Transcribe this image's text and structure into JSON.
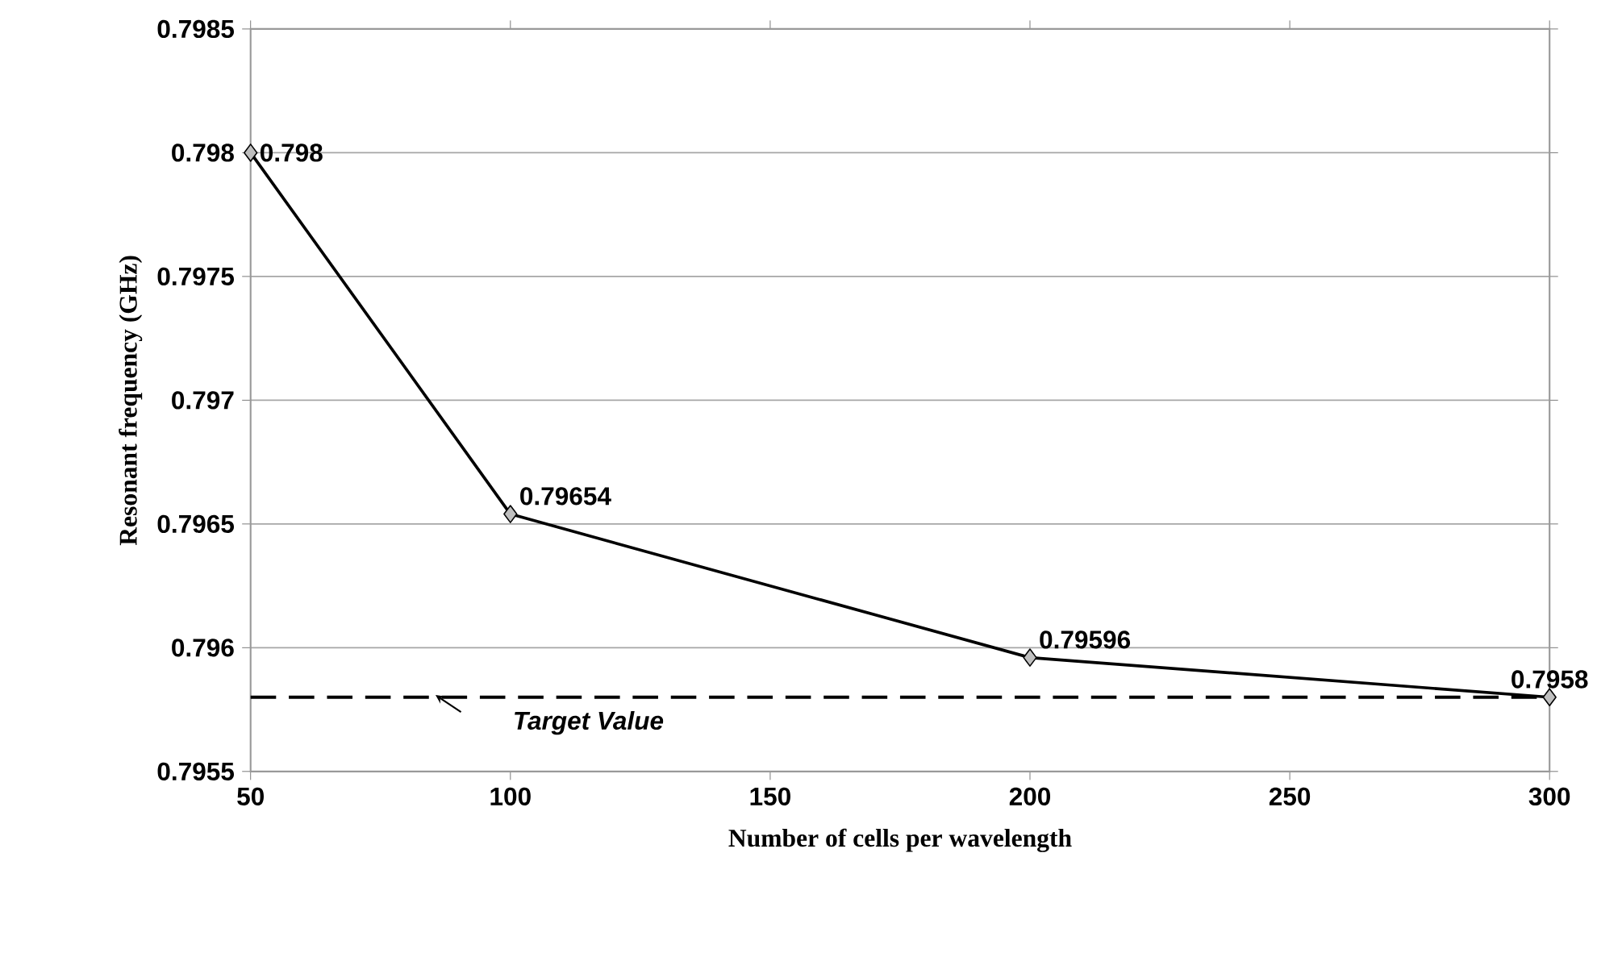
{
  "chart_data": {
    "type": "line",
    "xlabel": "Number of cells per wavelength",
    "ylabel": "Resonant frequency (GHz)",
    "x": [
      50,
      100,
      200,
      300
    ],
    "series": [
      {
        "color": "#000000",
        "values": [
          0.798,
          0.79654,
          0.79596,
          0.7958
        ],
        "value_labels": [
          "0.798",
          "0.79654",
          "0.79596",
          "0.7958"
        ]
      }
    ],
    "xlim": [
      50,
      300
    ],
    "xticks": [
      50,
      100,
      150,
      200,
      250,
      300
    ],
    "ylim": [
      0.7955,
      0.7985
    ],
    "yticks": [
      0.7955,
      0.796,
      0.7965,
      0.797,
      0.7975,
      0.798,
      0.7985
    ],
    "ref_lines": [
      {
        "axis": "y",
        "value": 0.7958,
        "label": "Target Value",
        "color": "#000000",
        "line_style": "dashed"
      }
    ],
    "grid": "y",
    "marker": "diamond",
    "line_style": "solid"
  }
}
